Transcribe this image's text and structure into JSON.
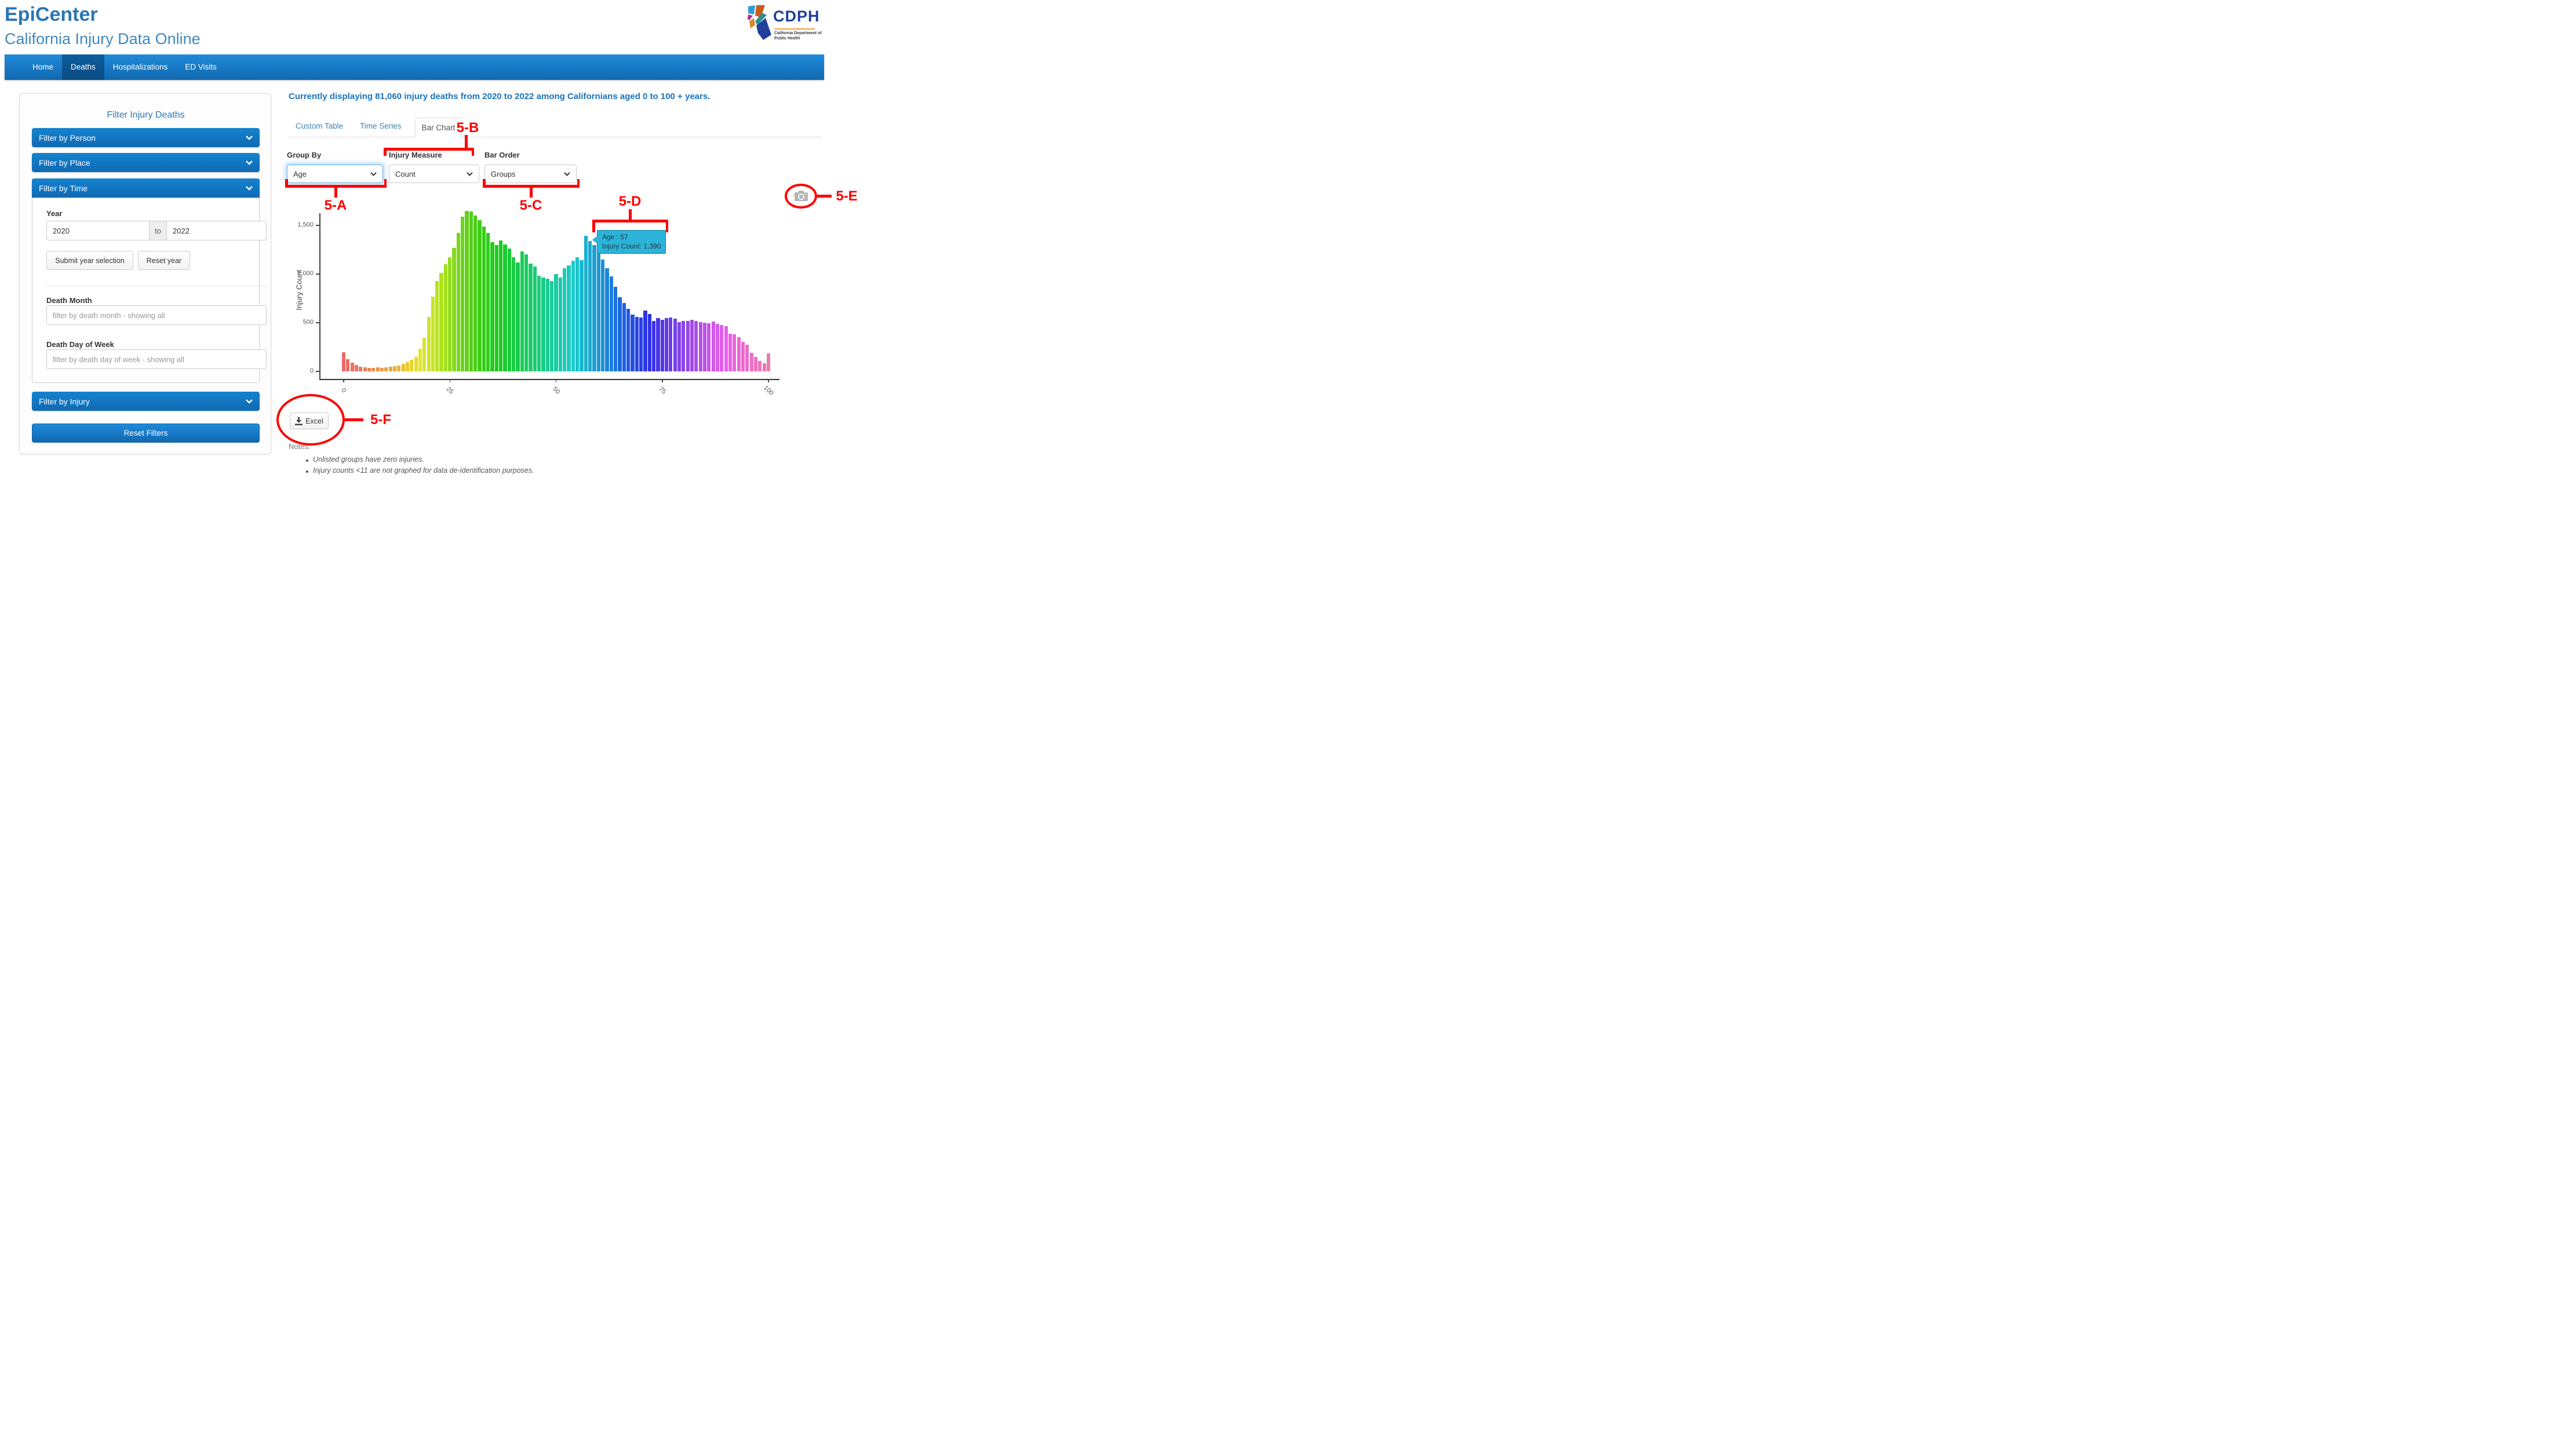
{
  "header": {
    "title": "EpiCenter",
    "subtitle": "California Injury Data Online"
  },
  "logo": {
    "acronym": "CDPH",
    "org_line1": "California Department of",
    "org_line2": "Public Health"
  },
  "nav": {
    "items": [
      {
        "label": "Home",
        "active": false
      },
      {
        "label": "Deaths",
        "active": true
      },
      {
        "label": "Hospitalizations",
        "active": false
      },
      {
        "label": "ED Visits",
        "active": false
      }
    ]
  },
  "sidebar": {
    "title": "Filter Injury Deaths",
    "accordions": {
      "person": "Filter by Person",
      "place": "Filter by Place",
      "time": "Filter by Time",
      "injury": "Filter by Injury"
    },
    "time_panel": {
      "year_label": "Year",
      "year_from": "2020",
      "year_separator": "to",
      "year_to": "2022",
      "submit_button": "Submit year selection",
      "reset_button": "Reset year",
      "death_month_label": "Death Month",
      "death_month_placeholder": "filter by death month - showing all",
      "death_dow_label": "Death Day of Week",
      "death_dow_placeholder": "filter by death day of week - showing all"
    },
    "reset_filters": "Reset Filters"
  },
  "main": {
    "status": "Currently displaying 81,060 injury deaths from 2020 to 2022 among Californians aged 0 to 100 + years.",
    "tabs": [
      {
        "label": "Custom Table",
        "active": false
      },
      {
        "label": "Time Series",
        "active": false
      },
      {
        "label": "Bar Chart",
        "active": true
      }
    ],
    "controls": {
      "group_by_label": "Group By",
      "group_by_value": "Age",
      "injury_measure_label": "Injury Measure",
      "injury_measure_value": "Count",
      "bar_order_label": "Bar Order",
      "bar_order_value": "Groups"
    },
    "export_button": "Excel",
    "notes": {
      "heading": "Notes:",
      "items": [
        "Unlisted groups have zero injuries.",
        "Injury counts <11 are not graphed for data de-identification purposes."
      ]
    }
  },
  "annotations": {
    "a": "5-A",
    "b": "5-B",
    "c": "5-C",
    "d": "5-D",
    "e": "5-E",
    "f": "5-F",
    "color": "#fe0000"
  },
  "chart_data": {
    "type": "bar",
    "title": "",
    "xlabel": "Age",
    "ylabel": "Injury Count",
    "x_start": 0,
    "x_ticks": [
      {
        "value": 0,
        "label": "0"
      },
      {
        "value": 25,
        "label": "25"
      },
      {
        "value": 50,
        "label": "50"
      },
      {
        "value": 75,
        "label": "75"
      },
      {
        "value": 100,
        "label": "100"
      }
    ],
    "y_ticks": [
      {
        "value": 0,
        "label": "0"
      },
      {
        "value": 500,
        "label": "500"
      },
      {
        "value": 1000,
        "label": "1,000"
      },
      {
        "value": 1500,
        "label": "1,500"
      }
    ],
    "ylim": [
      0,
      1700
    ],
    "grid": false,
    "legend": "none",
    "color_scheme": {
      "type": "hsl-rainbow",
      "hue_start": 0,
      "hue_end": 333
    },
    "values": [
      195,
      125,
      90,
      66,
      50,
      42,
      36,
      33,
      40,
      36,
      42,
      46,
      52,
      62,
      76,
      95,
      120,
      150,
      230,
      345,
      560,
      770,
      930,
      1010,
      1100,
      1170,
      1265,
      1420,
      1590,
      1650,
      1640,
      1600,
      1555,
      1490,
      1420,
      1330,
      1295,
      1345,
      1305,
      1260,
      1175,
      1120,
      1235,
      1200,
      1105,
      1080,
      985,
      965,
      955,
      930,
      1000,
      965,
      1060,
      1090,
      1135,
      1170,
      1140,
      1390,
      1340,
      1300,
      1240,
      1150,
      1060,
      975,
      870,
      760,
      700,
      645,
      585,
      560,
      555,
      625,
      590,
      520,
      545,
      530,
      545,
      555,
      540,
      505,
      515,
      515,
      530,
      515,
      505,
      500,
      495,
      510,
      490,
      475,
      465,
      385,
      380,
      350,
      305,
      275,
      190,
      150,
      105,
      85,
      185
    ],
    "tooltip": {
      "line1": "Age : 57",
      "line2": "Injury Count:  1,390",
      "x": 57,
      "value": 1390,
      "bg": "#2bb3d8",
      "border": "#17809c"
    }
  },
  "colors": {
    "header_title": "#2a76b4",
    "header_subtitle": "#4189c0",
    "nav_gradient_top": "#1e8ada",
    "nav_gradient_bottom": "#1268b0",
    "nav_active": "#0b5290",
    "accordion_blue": "#1277c1",
    "link_blue": "#4283b4",
    "status_blue": "#1b74bc",
    "annotation_red": "#fe0000",
    "tooltip_cyan": "#2bb3d8",
    "camera_gray": "#b5b5b5"
  }
}
